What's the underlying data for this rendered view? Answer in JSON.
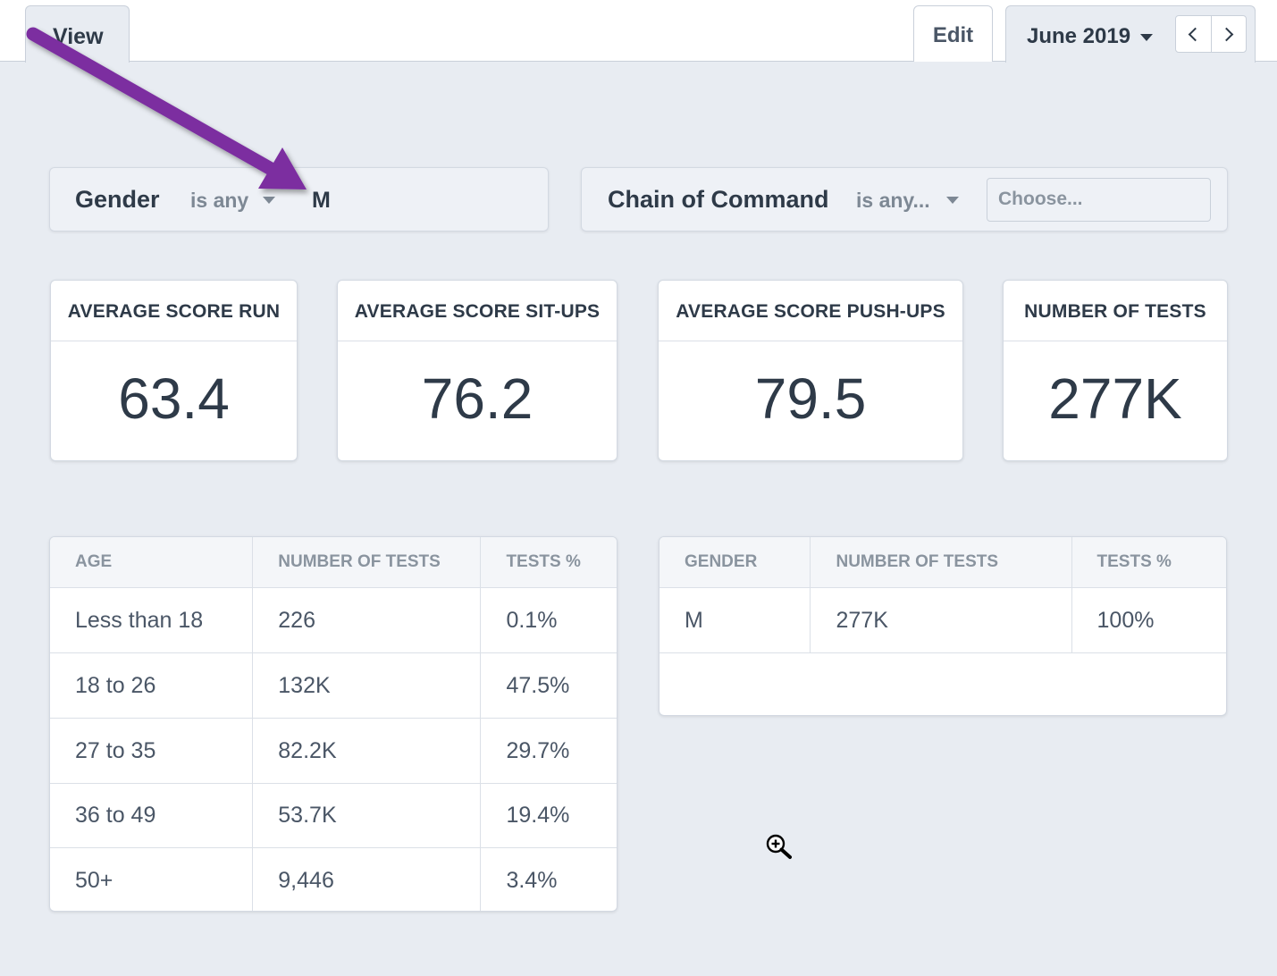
{
  "header": {
    "view_tab": "View",
    "edit_button": "Edit",
    "date": "June 2019"
  },
  "filters": {
    "gender": {
      "name": "Gender",
      "operator": "is any",
      "value": "M"
    },
    "chain_of_command": {
      "name": "Chain of Command",
      "operator": "is any...",
      "placeholder": "Choose..."
    }
  },
  "kpis": [
    {
      "label": "AVERAGE SCORE RUN",
      "value": "63.4"
    },
    {
      "label": "AVERAGE SCORE SIT-UPS",
      "value": "76.2"
    },
    {
      "label": "AVERAGE SCORE PUSH-UPS",
      "value": "79.5"
    },
    {
      "label": "NUMBER OF TESTS",
      "value": "277K"
    }
  ],
  "age_table": {
    "headers": [
      "AGE",
      "NUMBER OF TESTS",
      "TESTS %"
    ],
    "rows": [
      [
        "Less than 18",
        "226",
        "0.1%"
      ],
      [
        "18 to 26",
        "132K",
        "47.5%"
      ],
      [
        "27 to 35",
        "82.2K",
        "29.7%"
      ],
      [
        "36 to 49",
        "53.7K",
        "19.4%"
      ],
      [
        "50+",
        "9,446",
        "3.4%"
      ]
    ]
  },
  "gender_table": {
    "headers": [
      "GENDER",
      "NUMBER OF TESTS",
      "TESTS %"
    ],
    "rows": [
      [
        "M",
        "277K",
        "100%"
      ]
    ]
  },
  "annotation": {
    "arrow_color": "#7b2fa0"
  }
}
